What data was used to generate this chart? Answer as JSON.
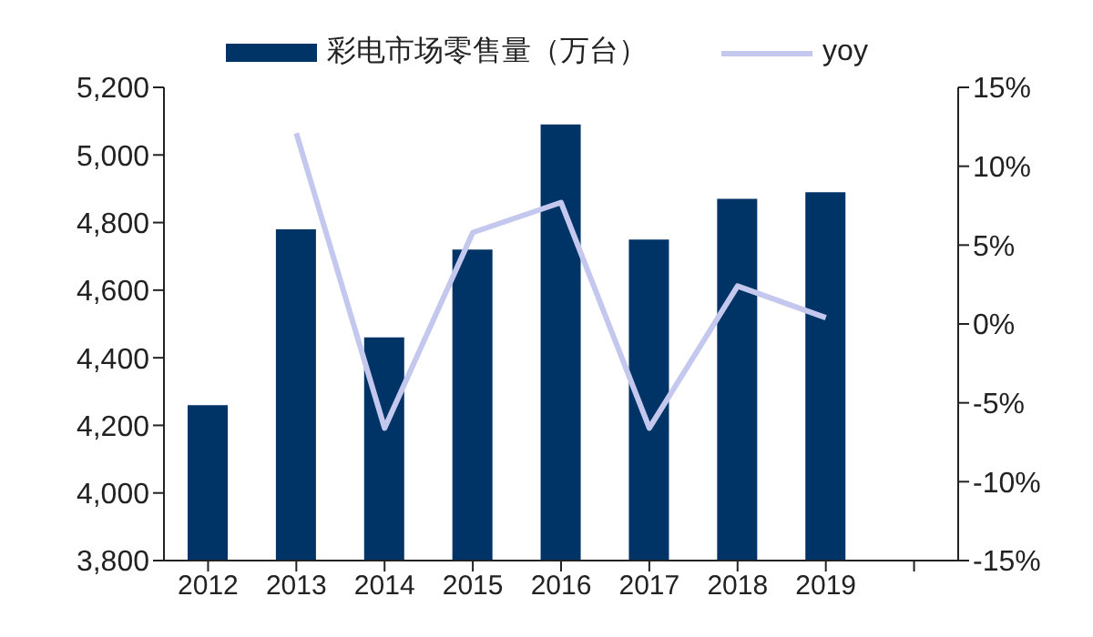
{
  "chart_data": {
    "type": "bar",
    "categories": [
      "2012",
      "2013",
      "2014",
      "2015",
      "2016",
      "2017",
      "2018",
      "2019",
      null
    ],
    "series": [
      {
        "name": "彩电市场零售量（万台）",
        "color": "#003366",
        "values": [
          4260,
          4780,
          4460,
          4720,
          5090,
          4750,
          4870,
          4890,
          null
        ]
      },
      {
        "name": "yoy",
        "type": "line",
        "axis": "y2",
        "color": "#c5c8ee",
        "values": [
          null,
          12.1,
          -6.6,
          5.8,
          7.7,
          -6.6,
          2.4,
          0.4,
          null
        ]
      }
    ],
    "ylim": [
      3800,
      5200
    ],
    "yticks": [
      {
        "value": 3800,
        "label": "3,800"
      },
      {
        "value": 4000,
        "label": "4,000"
      },
      {
        "value": 4200,
        "label": "4,200"
      },
      {
        "value": 4400,
        "label": "4,400"
      },
      {
        "value": 4600,
        "label": "4,600"
      },
      {
        "value": 4800,
        "label": "4,800"
      },
      {
        "value": 5000,
        "label": "5,000"
      },
      {
        "value": 5200,
        "label": "5,200"
      }
    ],
    "y2lim": [
      -15,
      15
    ],
    "y2ticks": [
      {
        "value": -15,
        "label": "-15%"
      },
      {
        "value": -10,
        "label": "-10%"
      },
      {
        "value": -5,
        "label": "-5%"
      },
      {
        "value": 0,
        "label": "0%"
      },
      {
        "value": 5,
        "label": "5%"
      },
      {
        "value": 10,
        "label": "10%"
      },
      {
        "value": 15,
        "label": "15%"
      }
    ],
    "grid": false,
    "legend": "top",
    "marker": "none"
  }
}
